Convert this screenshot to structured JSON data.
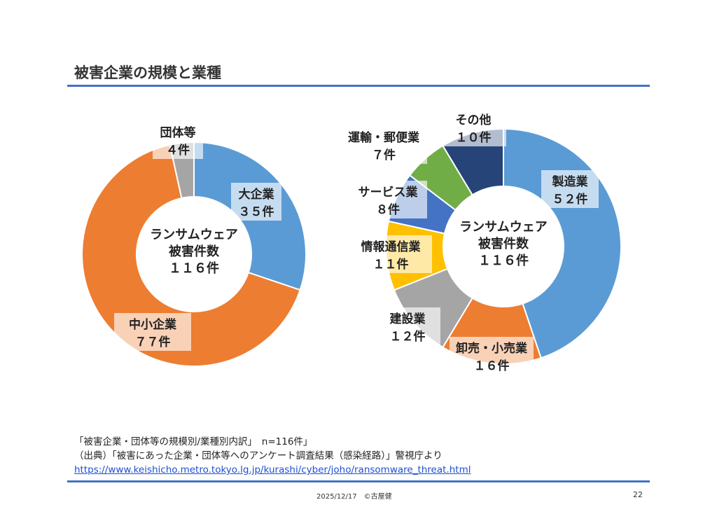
{
  "slide": {
    "title": "被害企業の規模と業種",
    "caption_line1": "「被害企業・団体等の規模別/業種別内訳」　n=116件」",
    "caption_line2": "（出典）「被害にあった企業・団体等へのアンケート調査結果（感染経路）」警視庁より",
    "url": "https://www.keishicho.metro.tokyo.lg.jp/kurashi/cyber/joho/ransomware_threat.html",
    "footer_date": "2025/12/17　©古屋健",
    "page_number": "22"
  },
  "chart_data": [
    {
      "type": "pie",
      "donut": true,
      "center_label": [
        "ランサムウェア",
        "被害件数",
        "１１６件"
      ],
      "slices": [
        {
          "name": "大企業",
          "value": 35,
          "value_label": "３５件",
          "color": "#5b9bd5"
        },
        {
          "name": "中小企業",
          "value": 77,
          "value_label": "７７件",
          "color": "#ed7d31"
        },
        {
          "name": "団体等",
          "value": 4,
          "value_label": "４件",
          "color": "#a5a5a5"
        }
      ]
    },
    {
      "type": "pie",
      "donut": true,
      "center_label": [
        "ランサムウェア",
        "被害件数",
        "１１６件"
      ],
      "slices": [
        {
          "name": "製造業",
          "value": 52,
          "value_label": "５２件",
          "color": "#5b9bd5"
        },
        {
          "name": "卸売・小売業",
          "value": 16,
          "value_label": "１６件",
          "color": "#ed7d31"
        },
        {
          "name": "建設業",
          "value": 12,
          "value_label": "１２件",
          "color": "#a5a5a5"
        },
        {
          "name": "情報通信業",
          "value": 11,
          "value_label": "１１件",
          "color": "#ffc000"
        },
        {
          "name": "サービス業",
          "value": 8,
          "value_label": "８件",
          "color": "#4472c4"
        },
        {
          "name": "運輸・郵便業",
          "value": 7,
          "value_label": "７件",
          "color": "#70ad47"
        },
        {
          "name": "その他",
          "value": 10,
          "value_label": "１０件",
          "color": "#264478"
        }
      ]
    }
  ]
}
